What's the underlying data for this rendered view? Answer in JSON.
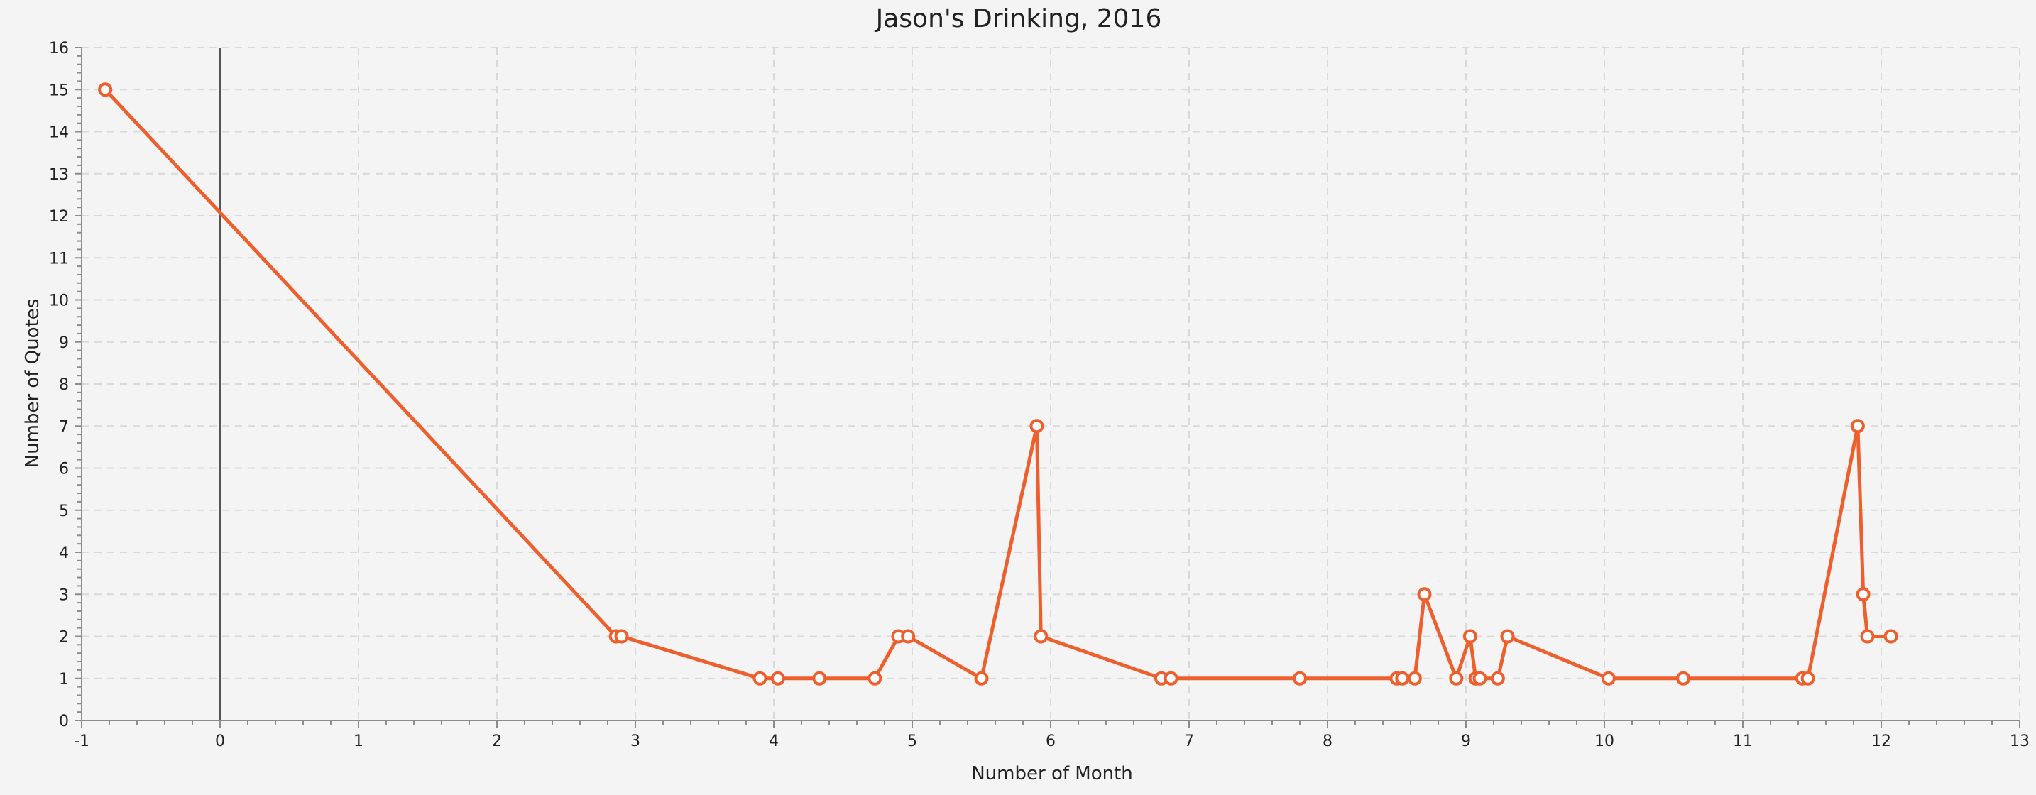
{
  "chart_data": {
    "type": "line",
    "title": "Jason's Drinking, 2016",
    "xlabel": "Number of Month",
    "ylabel": "Number of Quotes",
    "xlim": [
      -1,
      13
    ],
    "ylim": [
      0,
      16
    ],
    "x_ticks": [
      -1,
      0,
      1,
      2,
      3,
      4,
      5,
      6,
      7,
      8,
      9,
      10,
      11,
      12,
      13
    ],
    "y_ticks": [
      0,
      1,
      2,
      3,
      4,
      5,
      6,
      7,
      8,
      9,
      10,
      11,
      12,
      13,
      14,
      15,
      16
    ],
    "grid": true,
    "vertical_reference_line_x": 0,
    "color": "#ee5f2e",
    "series": [
      {
        "points": [
          {
            "x": -0.83,
            "y": 15
          },
          {
            "x": 2.86,
            "y": 2
          },
          {
            "x": 2.9,
            "y": 2
          },
          {
            "x": 3.9,
            "y": 1
          },
          {
            "x": 4.03,
            "y": 1
          },
          {
            "x": 4.33,
            "y": 1
          },
          {
            "x": 4.73,
            "y": 1
          },
          {
            "x": 4.9,
            "y": 2
          },
          {
            "x": 4.97,
            "y": 2
          },
          {
            "x": 5.5,
            "y": 1
          },
          {
            "x": 5.9,
            "y": 7
          },
          {
            "x": 5.93,
            "y": 2
          },
          {
            "x": 6.8,
            "y": 1
          },
          {
            "x": 6.87,
            "y": 1
          },
          {
            "x": 7.8,
            "y": 1
          },
          {
            "x": 8.5,
            "y": 1
          },
          {
            "x": 8.54,
            "y": 1
          },
          {
            "x": 8.63,
            "y": 1
          },
          {
            "x": 8.7,
            "y": 3
          },
          {
            "x": 8.93,
            "y": 1
          },
          {
            "x": 9.03,
            "y": 2
          },
          {
            "x": 9.07,
            "y": 1
          },
          {
            "x": 9.1,
            "y": 1
          },
          {
            "x": 9.23,
            "y": 1
          },
          {
            "x": 9.3,
            "y": 2
          },
          {
            "x": 10.03,
            "y": 1
          },
          {
            "x": 10.57,
            "y": 1
          },
          {
            "x": 11.43,
            "y": 1
          },
          {
            "x": 11.47,
            "y": 1
          },
          {
            "x": 11.83,
            "y": 7
          },
          {
            "x": 11.87,
            "y": 3
          },
          {
            "x": 11.9,
            "y": 2
          },
          {
            "x": 12.07,
            "y": 2
          }
        ]
      }
    ]
  }
}
